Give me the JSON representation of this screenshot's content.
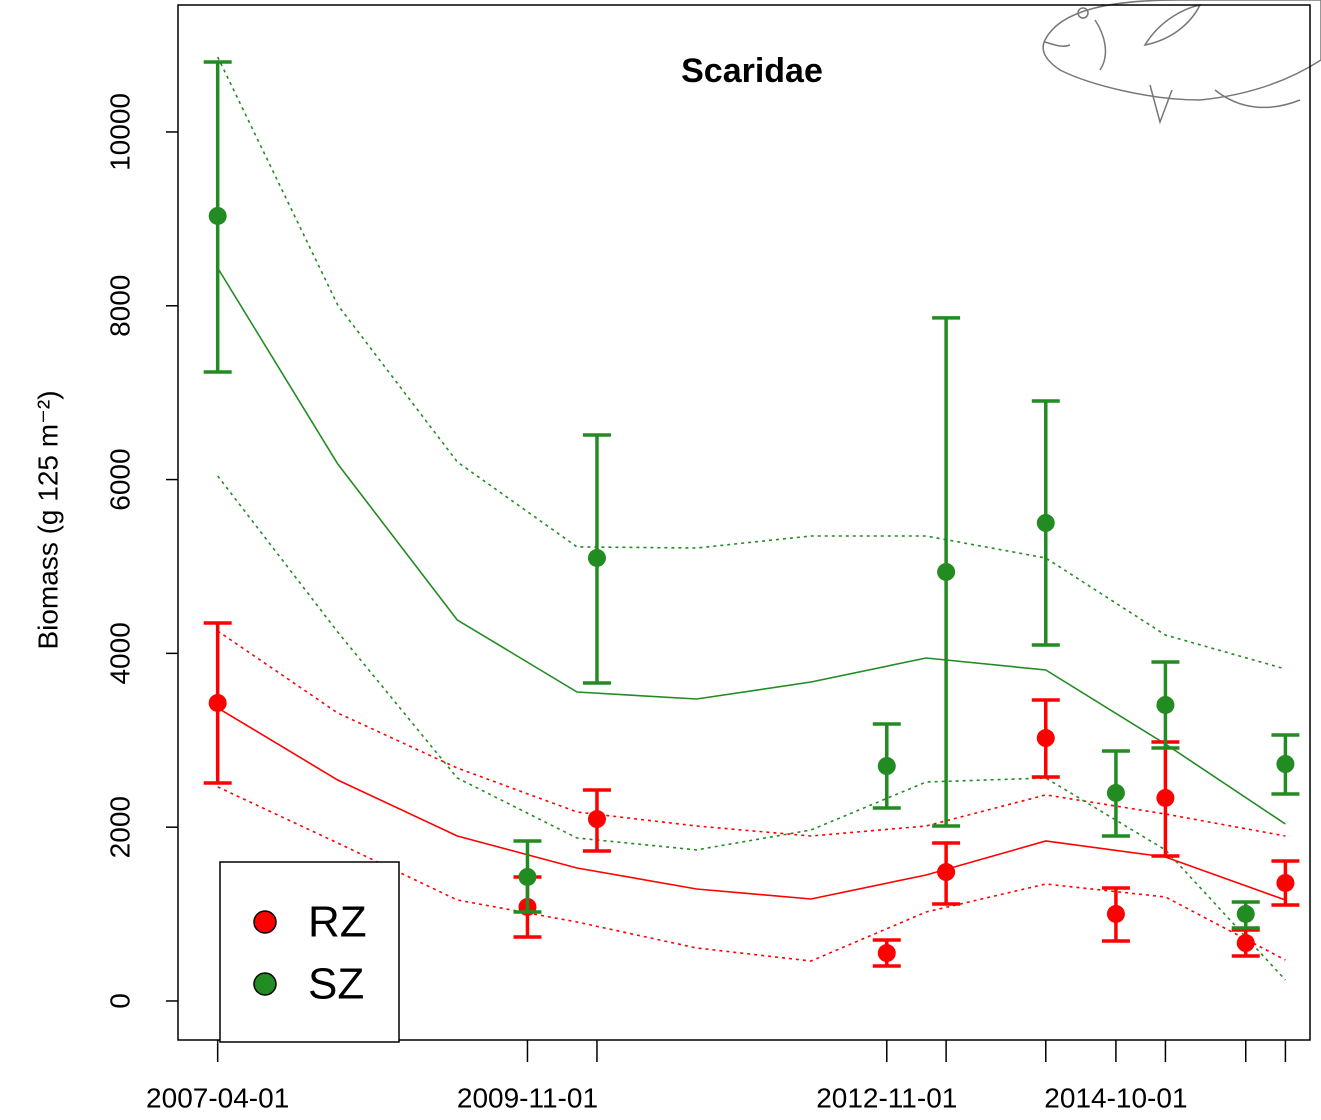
{
  "chart_data": {
    "type": "line",
    "title": "Scaridae",
    "y_label": "Biomass (g 125 m⁻²)",
    "xlim": [
      "2006-12-01",
      "2016-05-15"
    ],
    "xticks": [
      "2007-04-01",
      "2009-11-01",
      "2012-11-01",
      "2014-10-01"
    ],
    "ylim": [
      -449,
      11461
    ],
    "yticks": [
      0,
      2000,
      4000,
      6000,
      8000,
      10000
    ],
    "legend": "bottom-left",
    "x": [
      "2007-04-01",
      "2009-11-01",
      "2010-06-01",
      "2012-11-01",
      "2013-05-01",
      "2014-03-01",
      "2014-10-01",
      "2015-03-01",
      "2015-11-01",
      "2016-03-01"
    ],
    "fit_x": [
      "2007-04-01",
      "2008-04-01",
      "2009-04-01",
      "2010-04-01",
      "2011-04-01",
      "2012-03-15",
      "2013-03-01",
      "2014-03-01",
      "2015-03-01",
      "2016-03-01"
    ],
    "series": [
      {
        "name": "RZ",
        "color": "#ff0000",
        "values": [
          3429,
          1082,
          2094,
          552,
          1484,
          3026,
          1001,
          2336,
          667,
          1358
        ],
        "lower": [
          2509,
          736,
          1726,
          403,
          1116,
          2578,
          690,
          1669,
          518,
          1105
        ],
        "upper": [
          4350,
          1427,
          2428,
          702,
          1818,
          3464,
          1300,
          2980,
          817,
          1611
        ],
        "fit": [
          3372,
          2543,
          1899,
          1530,
          1289,
          1174,
          1450,
          1841,
          1657,
          1162
        ],
        "fit_lower": [
          2463,
          1818,
          1162,
          909,
          610,
          460,
          1024,
          1346,
          1197,
          472
        ],
        "fit_upper": [
          4258,
          3314,
          2681,
          2175,
          2014,
          1899,
          2014,
          2371,
          2152,
          1899
        ]
      },
      {
        "name": "SZ",
        "color": "#228b22",
        "values": [
          9033,
          1427,
          5098,
          2704,
          4937,
          5501,
          2394,
          3406,
          1001,
          2727
        ],
        "lower": [
          7238,
          1024,
          3659,
          2221,
          2014,
          4097,
          1899,
          2911,
          840,
          2382
        ],
        "upper": [
          10805,
          1841,
          6513,
          3188,
          7860,
          6904,
          2877,
          3901,
          1139,
          3061
        ],
        "fit": [
          8435,
          6180,
          4384,
          3556,
          3475,
          3671,
          3947,
          3809,
          2957,
          2037
        ],
        "fit_lower": [
          6041,
          4246,
          2566,
          1876,
          1738,
          1968,
          2520,
          2566,
          1738,
          242
        ],
        "fit_upper": [
          10863,
          8009,
          6203,
          5225,
          5213,
          5351,
          5351,
          5098,
          4212,
          3820
        ]
      }
    ]
  }
}
